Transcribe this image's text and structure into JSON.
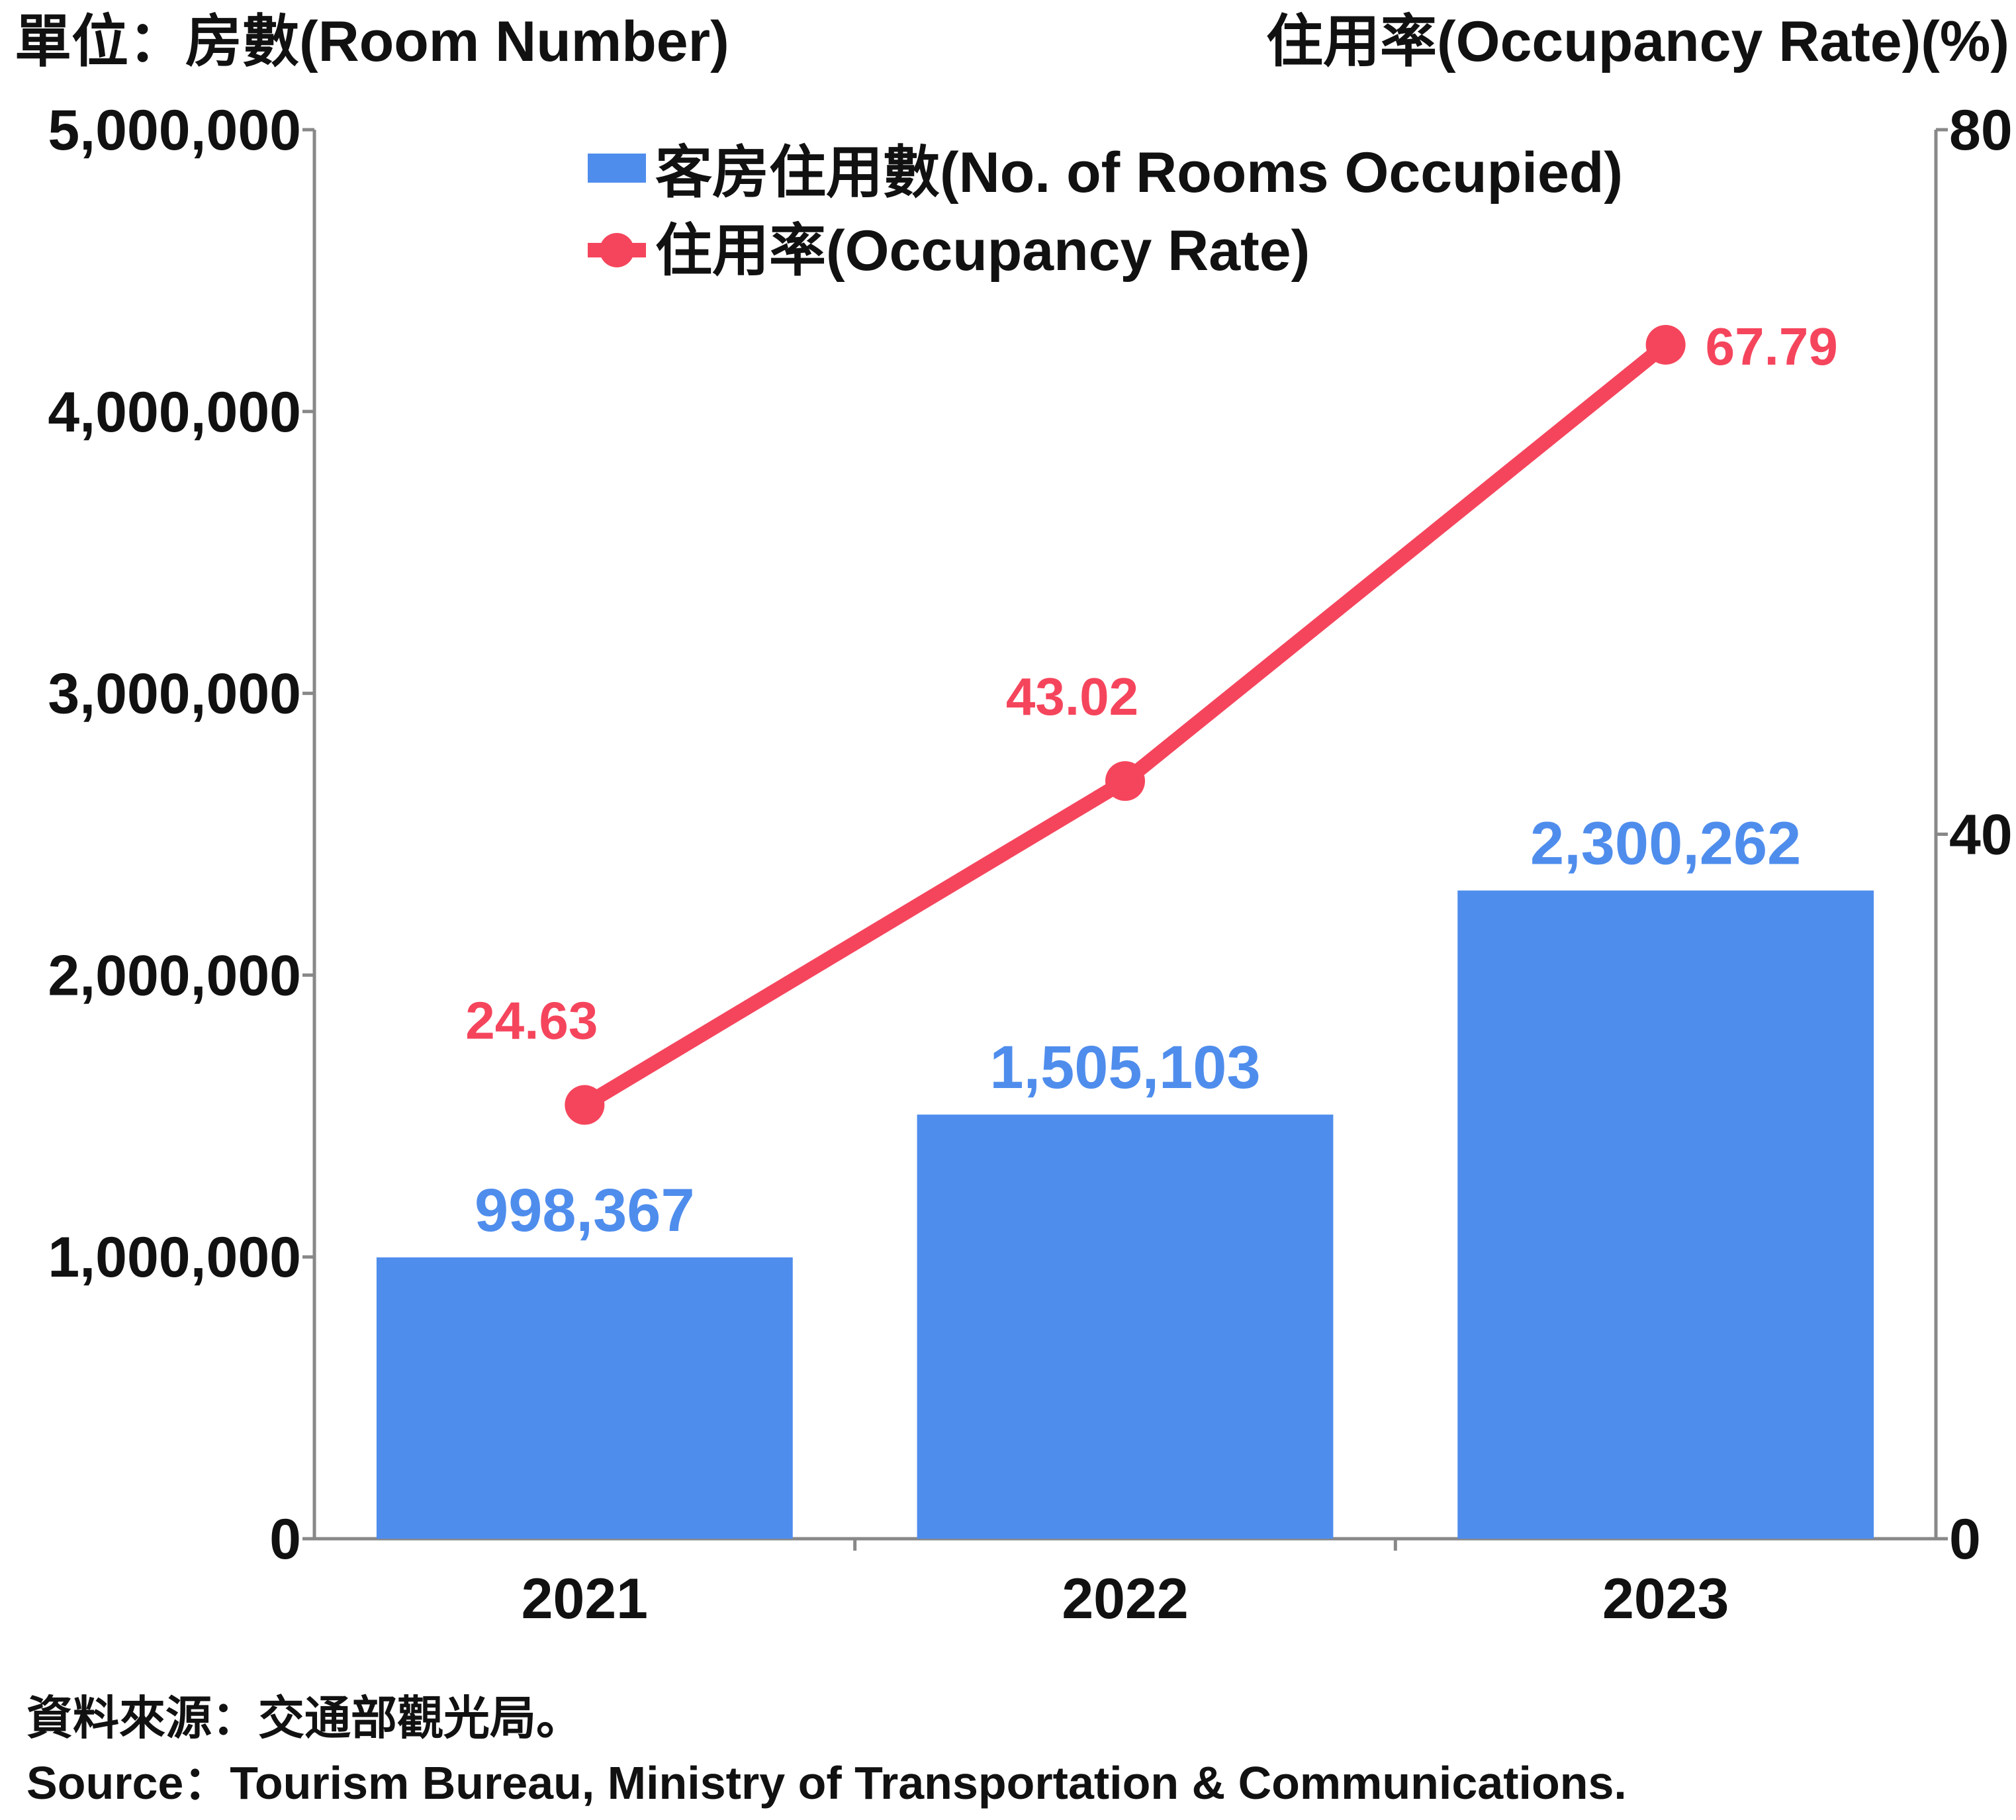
{
  "chart_data": {
    "type": "bar",
    "categories": [
      "2021",
      "2022",
      "2023"
    ],
    "series": [
      {
        "name": "客房住用數(No. of Rooms Occupied)",
        "type": "bar",
        "axis": "left",
        "values": [
          998367,
          1505103,
          2300262
        ],
        "labels": [
          "998,367",
          "1,505,103",
          "2,300,262"
        ],
        "color": "#4f8ded"
      },
      {
        "name": "住用率(Occupancy Rate)",
        "type": "line",
        "axis": "right",
        "values": [
          24.63,
          43.02,
          67.79
        ],
        "labels": [
          "24.63",
          "43.02",
          "67.79"
        ],
        "color": "#f5455c"
      }
    ],
    "left_axis": {
      "title": "單位：房數(Room Number)",
      "ylim": [
        0,
        5000000
      ],
      "ticks": [
        0,
        1000000,
        2000000,
        3000000,
        4000000,
        5000000
      ],
      "tick_labels": [
        "0",
        "1,000,000",
        "2,000,000",
        "3,000,000",
        "4,000,000",
        "5,000,000"
      ]
    },
    "right_axis": {
      "title": "住用率(Occupancy Rate)(%)",
      "ylim": [
        0,
        80
      ],
      "ticks": [
        0,
        40,
        80
      ],
      "tick_labels": [
        "0",
        "40",
        "80"
      ]
    },
    "legend": {
      "placement": "top-center"
    },
    "grid": false,
    "source_zh": "資料來源：交通部觀光局。",
    "source_en": "Source：Tourism Bureau, Ministry of Transportation & Communications."
  }
}
